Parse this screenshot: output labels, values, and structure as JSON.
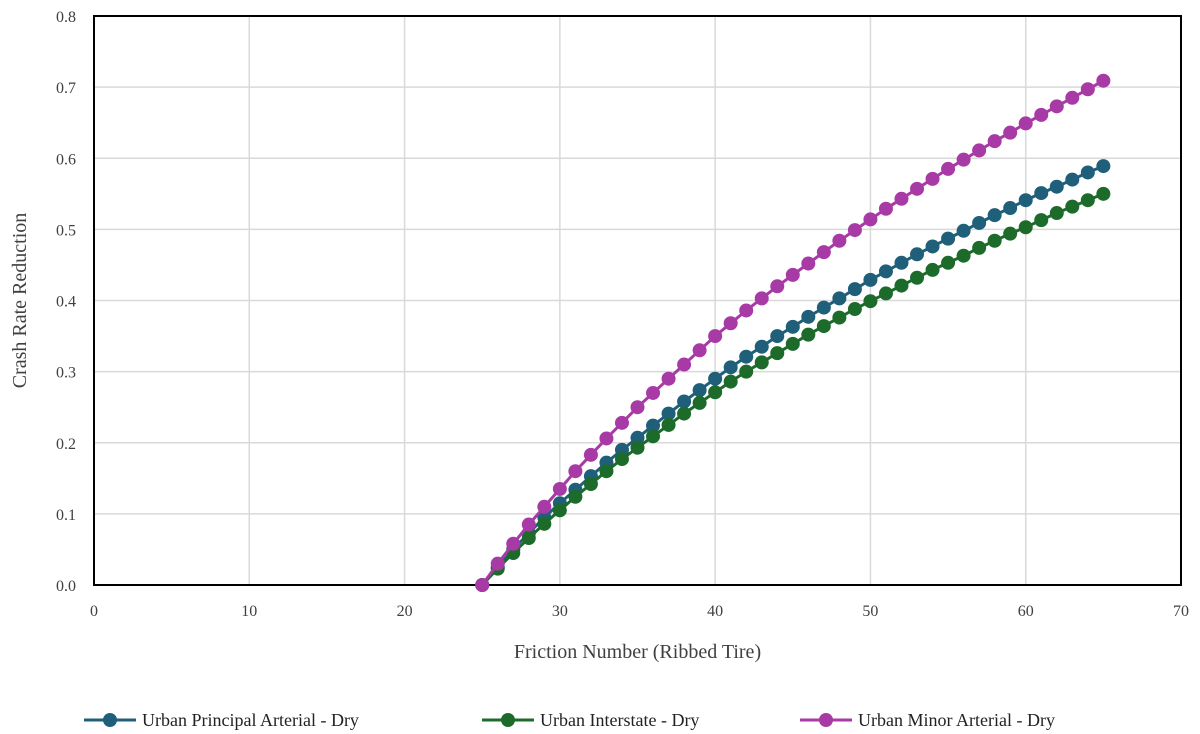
{
  "chart_data": {
    "type": "line",
    "xlabel": "Friction Number (Ribbed Tire)",
    "ylabel": "Crash Rate Reduction",
    "xlim": [
      0,
      70
    ],
    "ylim": [
      0,
      0.8
    ],
    "x_ticks": [
      "0",
      "10",
      "20",
      "30",
      "40",
      "50",
      "60",
      "70"
    ],
    "y_ticks": [
      "0.0",
      "0.1",
      "0.2",
      "0.3",
      "0.4",
      "0.5",
      "0.6",
      "0.7",
      "0.8"
    ],
    "grid": true,
    "legend_position": "bottom",
    "series": [
      {
        "name": "Urban Principal Arterial - Dry",
        "color": "#1f5f7a",
        "x": [
          25,
          26,
          27,
          28,
          29,
          30,
          31,
          32,
          33,
          34,
          35,
          36,
          37,
          38,
          39,
          40,
          41,
          42,
          43,
          44,
          45,
          46,
          47,
          48,
          49,
          50,
          51,
          52,
          53,
          54,
          55,
          56,
          57,
          58,
          59,
          60,
          61,
          62,
          63,
          64,
          65
        ],
        "y": [
          0.0,
          0.025,
          0.05,
          0.073,
          0.095,
          0.115,
          0.134,
          0.153,
          0.172,
          0.19,
          0.207,
          0.224,
          0.241,
          0.258,
          0.274,
          0.29,
          0.306,
          0.321,
          0.335,
          0.35,
          0.363,
          0.377,
          0.39,
          0.403,
          0.416,
          0.429,
          0.441,
          0.453,
          0.465,
          0.476,
          0.487,
          0.498,
          0.509,
          0.52,
          0.53,
          0.541,
          0.551,
          0.56,
          0.57,
          0.58,
          0.589
        ]
      },
      {
        "name": "Urban Interstate - Dry",
        "color": "#1d6b2a",
        "x": [
          25,
          26,
          27,
          28,
          29,
          30,
          31,
          32,
          33,
          34,
          35,
          36,
          37,
          38,
          39,
          40,
          41,
          42,
          43,
          44,
          45,
          46,
          47,
          48,
          49,
          50,
          51,
          52,
          53,
          54,
          55,
          56,
          57,
          58,
          59,
          60,
          61,
          62,
          63,
          64,
          65
        ],
        "y": [
          0.0,
          0.023,
          0.045,
          0.066,
          0.086,
          0.105,
          0.124,
          0.142,
          0.16,
          0.177,
          0.193,
          0.209,
          0.225,
          0.241,
          0.256,
          0.271,
          0.286,
          0.3,
          0.313,
          0.326,
          0.339,
          0.352,
          0.364,
          0.376,
          0.388,
          0.399,
          0.41,
          0.421,
          0.432,
          0.443,
          0.453,
          0.463,
          0.474,
          0.484,
          0.494,
          0.503,
          0.513,
          0.523,
          0.532,
          0.541,
          0.55
        ]
      },
      {
        "name": "Urban Minor Arterial - Dry",
        "color": "#a83aa6",
        "x": [
          25,
          26,
          27,
          28,
          29,
          30,
          31,
          32,
          33,
          34,
          35,
          36,
          37,
          38,
          39,
          40,
          41,
          42,
          43,
          44,
          45,
          46,
          47,
          48,
          49,
          50,
          51,
          52,
          53,
          54,
          55,
          56,
          57,
          58,
          59,
          60,
          61,
          62,
          63,
          64,
          65
        ],
        "y": [
          0.0,
          0.03,
          0.058,
          0.085,
          0.11,
          0.135,
          0.16,
          0.183,
          0.206,
          0.228,
          0.25,
          0.27,
          0.29,
          0.31,
          0.33,
          0.35,
          0.368,
          0.386,
          0.403,
          0.42,
          0.436,
          0.452,
          0.468,
          0.484,
          0.499,
          0.514,
          0.529,
          0.543,
          0.557,
          0.571,
          0.585,
          0.598,
          0.611,
          0.624,
          0.636,
          0.649,
          0.661,
          0.673,
          0.685,
          0.697,
          0.709
        ]
      }
    ]
  }
}
